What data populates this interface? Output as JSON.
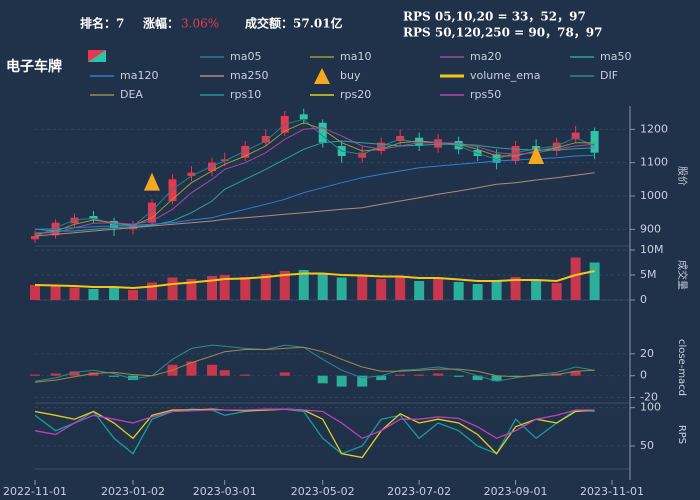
{
  "header": {
    "rank": "排名：7",
    "change_label": "涨幅：",
    "change": "3.06%",
    "change_color": "#e8384f",
    "turnover": "成交额：57.01亿",
    "rps_short": "RPS 05,10,20 = 33，52，97",
    "rps_long": "RPS 50,120,250 = 90，78，97"
  },
  "chart_data": {
    "title": "电子车牌",
    "x": [
      "2022-11-01",
      "2022-11-14",
      "2022-11-26",
      "2022-12-08",
      "2022-12-21",
      "2023-01-02",
      "2023-01-14",
      "2023-01-27",
      "2023-02-08",
      "2023-02-21",
      "2023-03-01",
      "2023-03-14",
      "2023-03-27",
      "2023-04-08",
      "2023-04-20",
      "2023-05-02",
      "2023-05-14",
      "2023-05-27",
      "2023-06-08",
      "2023-06-20",
      "2023-07-02",
      "2023-07-14",
      "2023-07-27",
      "2023-08-08",
      "2023-08-20",
      "2023-09-01",
      "2023-09-14",
      "2023-09-27",
      "2023-10-09",
      "2023-10-21"
    ],
    "xlim": [
      "2022-11-01",
      "2023-11-01"
    ],
    "xticks": [
      "2022-11-01",
      "2023-01-02",
      "2023-03-01",
      "2023-05-02",
      "2023-07-02",
      "2023-09-01",
      "2023-11-01"
    ],
    "price": {
      "type": "candlestick",
      "ylabel": "股价",
      "ylim": [
        850,
        1270
      ],
      "yticks": [
        900,
        1000,
        1100,
        1200
      ],
      "up_color": "#e8384f",
      "down_color": "#2ec4a8",
      "open": [
        870,
        882,
        918,
        940,
        925,
        900,
        920,
        985,
        1060,
        1075,
        1105,
        1115,
        1160,
        1190,
        1245,
        1220,
        1150,
        1115,
        1135,
        1165,
        1175,
        1145,
        1165,
        1138,
        1125,
        1105,
        1150,
        1135,
        1170,
        1195
      ],
      "high": [
        895,
        930,
        948,
        955,
        935,
        925,
        990,
        1065,
        1090,
        1115,
        1130,
        1165,
        1200,
        1255,
        1262,
        1230,
        1165,
        1150,
        1175,
        1200,
        1190,
        1185,
        1178,
        1150,
        1140,
        1165,
        1170,
        1175,
        1210,
        1205
      ],
      "low": [
        860,
        872,
        905,
        918,
        880,
        885,
        912,
        975,
        1045,
        1060,
        1090,
        1105,
        1150,
        1180,
        1215,
        1145,
        1100,
        1100,
        1125,
        1150,
        1135,
        1130,
        1125,
        1105,
        1080,
        1095,
        1120,
        1120,
        1160,
        1110
      ],
      "close": [
        880,
        920,
        935,
        930,
        905,
        915,
        980,
        1050,
        1070,
        1100,
        1110,
        1150,
        1180,
        1240,
        1230,
        1160,
        1120,
        1130,
        1160,
        1180,
        1150,
        1170,
        1140,
        1120,
        1100,
        1150,
        1140,
        1160,
        1190,
        1130
      ],
      "series": [
        {
          "name": "ma05",
          "color": "#2a7f8f",
          "values": [
            878,
            905,
            928,
            933,
            915,
            910,
            955,
            1020,
            1060,
            1090,
            1105,
            1135,
            1165,
            1215,
            1230,
            1180,
            1135,
            1125,
            1150,
            1170,
            1160,
            1162,
            1150,
            1128,
            1110,
            1130,
            1142,
            1150,
            1175,
            1150
          ]
        },
        {
          "name": "ma10",
          "color": "#9a9a3a",
          "values": [
            885,
            895,
            915,
            928,
            920,
            912,
            935,
            990,
            1040,
            1075,
            1095,
            1120,
            1150,
            1195,
            1220,
            1200,
            1160,
            1135,
            1140,
            1160,
            1165,
            1160,
            1155,
            1140,
            1120,
            1120,
            1135,
            1145,
            1160,
            1160
          ]
        },
        {
          "name": "ma20",
          "color": "#a04aa0",
          "values": [
            890,
            890,
            905,
            918,
            920,
            915,
            925,
            960,
            1010,
            1050,
            1080,
            1100,
            1130,
            1170,
            1200,
            1205,
            1180,
            1150,
            1140,
            1150,
            1160,
            1160,
            1158,
            1148,
            1130,
            1125,
            1130,
            1140,
            1150,
            1155
          ]
        },
        {
          "name": "ma50",
          "color": "#2aa39a",
          "values": [
            900,
            895,
            895,
            900,
            905,
            908,
            912,
            925,
            950,
            985,
            1020,
            1050,
            1080,
            1110,
            1140,
            1160,
            1165,
            1160,
            1155,
            1150,
            1152,
            1155,
            1155,
            1152,
            1145,
            1140,
            1138,
            1138,
            1142,
            1145
          ]
        },
        {
          "name": "ma120",
          "color": "#2f7fd0",
          "values": [
            900,
            902,
            905,
            908,
            910,
            912,
            915,
            920,
            928,
            935,
            945,
            960,
            975,
            990,
            1010,
            1025,
            1040,
            1055,
            1065,
            1075,
            1085,
            1090,
            1095,
            1100,
            1105,
            1108,
            1112,
            1115,
            1120,
            1122
          ]
        },
        {
          "name": "ma250",
          "color": "#b08a80",
          "values": [
            880,
            885,
            890,
            895,
            900,
            905,
            910,
            915,
            920,
            925,
            930,
            935,
            940,
            945,
            950,
            955,
            960,
            965,
            975,
            985,
            995,
            1005,
            1015,
            1025,
            1035,
            1040,
            1048,
            1055,
            1062,
            1070
          ]
        }
      ],
      "markers": {
        "name": "buy",
        "color": "#f5a623",
        "x": [
          "2023-01-14",
          "2023-09-14"
        ],
        "values": [
          1040,
          1120
        ]
      }
    },
    "volume": {
      "type": "bar",
      "ylabel": "成交量",
      "ylim": [
        0,
        10000000
      ],
      "yticks": [
        0,
        {
          "value": 5000000,
          "label": "5M"
        },
        {
          "value": 10000000,
          "label": "10M"
        }
      ],
      "values": [
        3000000,
        2800000,
        2500000,
        2200000,
        2600000,
        2000000,
        3500000,
        4500000,
        4200000,
        4800000,
        5000000,
        4600000,
        5200000,
        5800000,
        6000000,
        5200000,
        4500000,
        4800000,
        4200000,
        4600000,
        3800000,
        4500000,
        3600000,
        3200000,
        3800000,
        4600000,
        4000000,
        3400000,
        8500000,
        7500000
      ],
      "series": [
        {
          "name": "volume_ema",
          "color": "#f5c518",
          "values": [
            3000000,
            2900000,
            2800000,
            2600000,
            2600000,
            2400000,
            2700000,
            3200000,
            3500000,
            3900000,
            4200000,
            4300000,
            4600000,
            5000000,
            5300000,
            5300000,
            5000000,
            4900000,
            4700000,
            4700000,
            4400000,
            4400000,
            4100000,
            3800000,
            3800000,
            4000000,
            4000000,
            3800000,
            5000000,
            5800000
          ]
        }
      ]
    },
    "macd": {
      "type": "bar",
      "ylabel": "close-macd",
      "ylim": [
        -25,
        40
      ],
      "yticks": [
        -20,
        0,
        20
      ],
      "up_color": "#e8384f",
      "down_color": "#2ec4a8",
      "values": [
        1,
        2,
        4,
        3,
        -1,
        -4,
        0,
        10,
        13,
        10,
        5,
        1,
        0,
        3,
        0,
        -7,
        -10,
        -10,
        -4,
        1,
        1,
        2,
        -1,
        -4,
        -5,
        -1,
        1,
        2,
        4,
        0
      ],
      "series": [
        {
          "name": "DIF",
          "color": "#2b8a8a",
          "values": [
            -5,
            -2,
            3,
            5,
            2,
            -3,
            0,
            15,
            25,
            28,
            27,
            25,
            24,
            28,
            26,
            15,
            5,
            -2,
            0,
            5,
            6,
            8,
            5,
            0,
            -5,
            -2,
            1,
            3,
            8,
            5
          ]
        },
        {
          "name": "DEA",
          "color": "#a08a4a",
          "values": [
            -6,
            -4,
            -1,
            2,
            3,
            1,
            0,
            5,
            12,
            18,
            22,
            24,
            24,
            25,
            26,
            22,
            15,
            8,
            4,
            4,
            5,
            6,
            6,
            4,
            0,
            -1,
            0,
            1,
            4,
            5
          ]
        }
      ]
    },
    "rps": {
      "type": "line",
      "ylabel": "RPS",
      "ylim": [
        20,
        110
      ],
      "yticks": [
        50,
        100
      ],
      "series": [
        {
          "name": "rps10",
          "color": "#1a9a9a",
          "values": [
            90,
            70,
            80,
            95,
            60,
            40,
            85,
            95,
            98,
            97,
            90,
            95,
            97,
            98,
            95,
            60,
            40,
            50,
            85,
            90,
            60,
            80,
            70,
            50,
            40,
            85,
            60,
            80,
            97,
            95
          ]
        },
        {
          "name": "rps20",
          "color": "#e0d020",
          "values": [
            95,
            90,
            85,
            95,
            80,
            60,
            90,
            97,
            97,
            98,
            97,
            96,
            97,
            98,
            97,
            85,
            40,
            35,
            70,
            92,
            80,
            85,
            80,
            65,
            40,
            75,
            85,
            80,
            95,
            97
          ]
        },
        {
          "name": "rps50",
          "color": "#c040c0",
          "values": [
            70,
            65,
            80,
            90,
            85,
            80,
            88,
            95,
            96,
            97,
            97,
            97,
            98,
            98,
            97,
            95,
            80,
            60,
            70,
            85,
            85,
            88,
            86,
            75,
            60,
            70,
            85,
            90,
            97,
            97
          ]
        }
      ]
    }
  }
}
